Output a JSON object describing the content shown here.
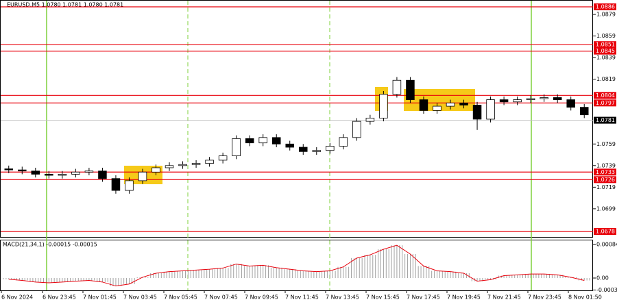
{
  "chart_data": [
    {
      "type": "candlestick",
      "title": "EURUSD,M5  1.0780 1.0781 1.0780 1.0781",
      "x_labels": [
        "6 Nov 2024",
        "6 Nov 23:45",
        "7 Nov 01:45",
        "7 Nov 03:45",
        "7 Nov 05:45",
        "7 Nov 07:45",
        "7 Nov 09:45",
        "7 Nov 11:45",
        "7 Nov 13:45",
        "7 Nov 15:45",
        "7 Nov 17:45",
        "7 Nov 19:45",
        "7 Nov 21:45",
        "7 Nov 23:45",
        "8 Nov 01:50"
      ],
      "open": [
        1.0736,
        1.0735,
        1.0734,
        1.0731,
        1.073,
        1.0731,
        1.0733,
        1.0734,
        1.0727,
        1.0716,
        1.0725,
        1.0733,
        1.0737,
        1.0739,
        1.074,
        1.0741,
        1.0744,
        1.0748,
        1.0764,
        1.076,
        1.0765,
        1.0759,
        1.0756,
        1.0752,
        1.0753,
        1.0757,
        1.0765,
        1.078,
        1.0783,
        1.0805,
        1.0818,
        1.08,
        1.079,
        1.0794,
        1.0797,
        1.0795,
        1.0782,
        1.08,
        1.0798,
        1.08,
        1.0801,
        1.0802,
        1.08,
        1.0793
      ],
      "high": [
        1.0739,
        1.0738,
        1.0737,
        1.0734,
        1.0734,
        1.0736,
        1.0737,
        1.0737,
        1.073,
        1.0728,
        1.0736,
        1.074,
        1.0742,
        1.0743,
        1.0744,
        1.0747,
        1.0751,
        1.0767,
        1.0767,
        1.0768,
        1.0768,
        1.0762,
        1.0759,
        1.0756,
        1.076,
        1.0768,
        1.0783,
        1.0786,
        1.0808,
        1.0821,
        1.0821,
        1.0803,
        1.0797,
        1.08,
        1.08,
        1.0798,
        1.0803,
        1.0803,
        1.0803,
        1.0804,
        1.0805,
        1.0805,
        1.0803,
        1.0796
      ],
      "low": [
        1.0732,
        1.0731,
        1.0728,
        1.0727,
        1.0727,
        1.0728,
        1.073,
        1.0724,
        1.0713,
        1.0713,
        1.0722,
        1.073,
        1.0734,
        1.0736,
        1.0737,
        1.0738,
        1.0741,
        1.0745,
        1.0757,
        1.0757,
        1.0756,
        1.0753,
        1.0749,
        1.0749,
        1.075,
        1.0754,
        1.0762,
        1.0777,
        1.078,
        1.0802,
        1.0797,
        1.0787,
        1.0787,
        1.0791,
        1.0792,
        1.0772,
        1.0779,
        1.0795,
        1.0795,
        1.0797,
        1.0798,
        1.0797,
        1.079,
        1.0783
      ],
      "close": [
        1.0735,
        1.0734,
        1.0731,
        1.073,
        1.0731,
        1.0733,
        1.0734,
        1.0727,
        1.0716,
        1.0725,
        1.0733,
        1.0737,
        1.0739,
        1.074,
        1.0741,
        1.0744,
        1.0748,
        1.0764,
        1.076,
        1.0765,
        1.0759,
        1.0756,
        1.0752,
        1.0753,
        1.0757,
        1.0765,
        1.078,
        1.0783,
        1.0805,
        1.0818,
        1.08,
        1.079,
        1.0794,
        1.0797,
        1.0795,
        1.0782,
        1.08,
        1.0798,
        1.08,
        1.0801,
        1.0802,
        1.08,
        1.0793,
        1.0786
      ],
      "ylim": [
        1.0678,
        1.0886
      ],
      "yticks": [
        1.0879,
        1.0859,
        1.0839,
        1.0819,
        1.0759,
        1.0739,
        1.0719,
        1.0699
      ],
      "levels": [
        1.0886,
        1.0851,
        1.0845,
        1.0804,
        1.0797,
        1.0733,
        1.0726,
        1.0678
      ],
      "level_color": "#e8000b",
      "current_price": 1.0781
    },
    {
      "type": "macd",
      "title": "MACD(21,34,1) -0.00015 -0.00015",
      "values": [
        -3e-05,
        -6e-05,
        -0.0001,
        -0.00012,
        -0.0001,
        -8e-05,
        -6e-05,
        -0.0001,
        -0.0002,
        -0.00015,
        2e-05,
        0.00012,
        0.00016,
        0.00018,
        0.0002,
        0.00022,
        0.00025,
        0.00035,
        0.0003,
        0.00032,
        0.00026,
        0.00022,
        0.00018,
        0.00016,
        0.00018,
        0.00028,
        0.0005,
        0.00058,
        0.00072,
        0.00082,
        0.0006,
        0.0003,
        0.00018,
        0.00016,
        0.00012,
        -8e-05,
        -4e-05,
        6e-05,
        8e-05,
        0.0001,
        0.0001,
        8e-05,
        2e-05,
        -6e-05
      ],
      "color": "#e8000b",
      "ylim": [
        -0.0003,
        0.00084
      ],
      "yticks": [
        0.00084,
        {
          "value": 0,
          "label": "0.00"
        },
        -0.0003
      ]
    }
  ]
}
